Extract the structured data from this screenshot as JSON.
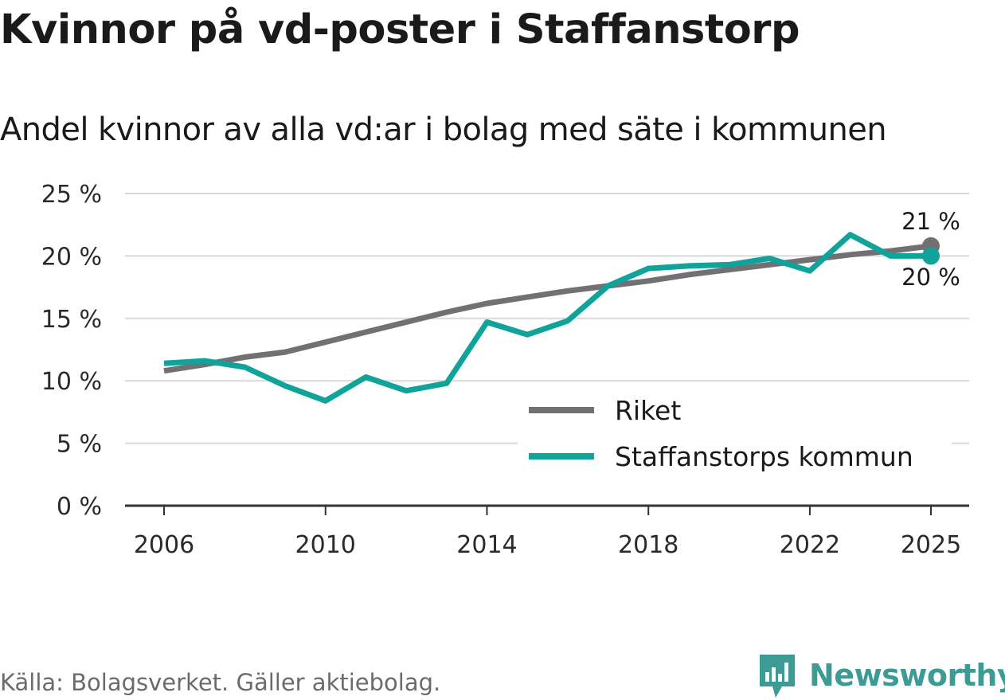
{
  "title": "Kvinnor på vd-poster i Staffanstorp",
  "subtitle": "Andel kvinnor av alla vd:ar i bolag med säte i kommunen",
  "footer": "Källa: Bolagsverket. Gäller aktiebolag.",
  "brand": "Newsworthy",
  "colors": {
    "riket": "#737074",
    "kommun": "#0fa39a",
    "brand": "#3c9b94",
    "grid": "#d9d9d9",
    "axis": "#333333"
  },
  "chart_data": {
    "type": "line",
    "x": [
      2006,
      2007,
      2008,
      2009,
      2010,
      2011,
      2012,
      2013,
      2014,
      2015,
      2016,
      2017,
      2018,
      2019,
      2020,
      2021,
      2022,
      2023,
      2024,
      2025
    ],
    "series": [
      {
        "name": "Riket",
        "color": "#737074",
        "values": [
          10.8,
          11.3,
          11.9,
          12.3,
          13.1,
          13.9,
          14.7,
          15.5,
          16.2,
          16.7,
          17.2,
          17.6,
          18.0,
          18.5,
          18.9,
          19.3,
          19.7,
          20.1,
          20.4,
          20.8
        ]
      },
      {
        "name": "Staffanstorps kommun",
        "color": "#0fa39a",
        "values": [
          11.4,
          11.6,
          11.1,
          9.6,
          8.4,
          10.3,
          9.2,
          9.8,
          14.7,
          13.7,
          14.8,
          17.6,
          19.0,
          19.2,
          19.3,
          19.8,
          18.8,
          21.7,
          20.0,
          20.0
        ]
      }
    ],
    "end_labels": [
      "21 %",
      "20 %"
    ],
    "yticks": [
      0,
      5,
      10,
      15,
      20,
      25
    ],
    "ytick_labels": [
      "0 %",
      "5 %",
      "10 %",
      "15 %",
      "20 %",
      "25 %"
    ],
    "xticks": [
      2006,
      2010,
      2014,
      2018,
      2022,
      2025
    ],
    "xtick_labels": [
      "2006",
      "2010",
      "2014",
      "2018",
      "2022",
      "2025"
    ],
    "ylim": [
      0,
      25
    ],
    "xlim": [
      2006,
      2025
    ],
    "grid": true,
    "legend_position": "bottom-right"
  }
}
